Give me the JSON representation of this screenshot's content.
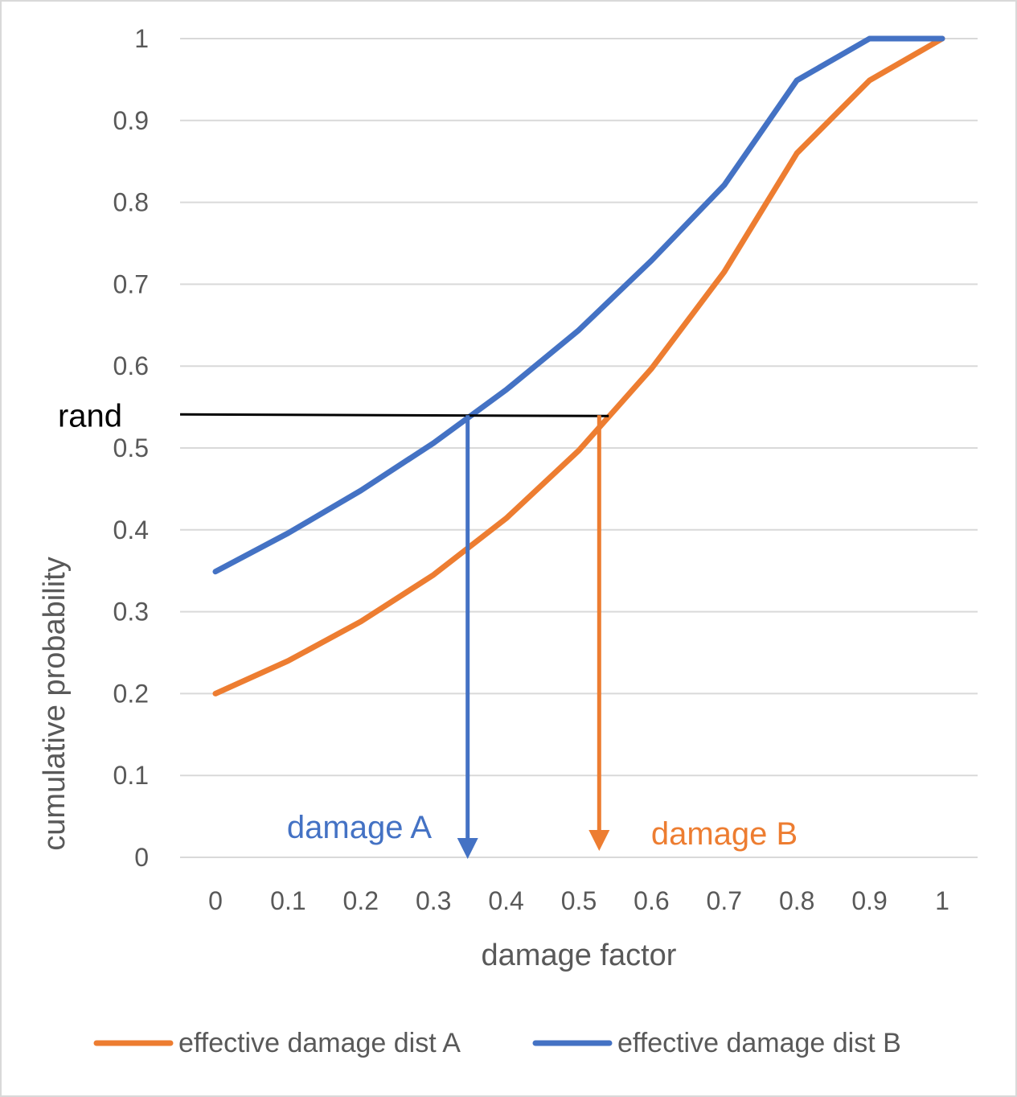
{
  "chart_data": {
    "type": "line",
    "title": "",
    "xlabel": "damage factor",
    "ylabel": "cumulative probability",
    "xlim": [
      0,
      1
    ],
    "ylim": [
      0,
      1
    ],
    "grid": "horizontal",
    "legend_position": "bottom",
    "x": [
      0,
      0.1,
      0.2,
      0.3,
      0.4,
      0.5,
      0.6,
      0.7,
      0.8,
      0.9,
      1
    ],
    "x_tick_labels": [
      "0",
      "0.1",
      "0.2",
      "0.3",
      "0.4",
      "0.5",
      "0.6",
      "0.7",
      "0.8",
      "0.9",
      "1"
    ],
    "y_tick_labels": [
      "0",
      "0.1",
      "0.2",
      "0.3",
      "0.4",
      "0.5",
      "0.6",
      "0.7",
      "0.8",
      "0.9",
      "1"
    ],
    "series": [
      {
        "name": "effective damage dist A",
        "color": "#ED7D31",
        "values": [
          0.2,
          0.24,
          0.288,
          0.345,
          0.414,
          0.497,
          0.597,
          0.715,
          0.86,
          0.949,
          1.0
        ]
      },
      {
        "name": "effective damage dist B",
        "color": "#4472C4",
        "values": [
          0.349,
          0.396,
          0.448,
          0.506,
          0.571,
          0.644,
          0.729,
          0.821,
          0.949,
          1.0,
          1.0
        ]
      }
    ],
    "annotations": {
      "rand": {
        "label": "rand",
        "y": 0.54,
        "x_end": 0.54,
        "color": "#000000"
      },
      "damage_a": {
        "label": "damage A",
        "x": 0.347,
        "color": "#4472C4"
      },
      "damage_b": {
        "label": "damage B",
        "x": 0.528,
        "color": "#ED7D31"
      }
    }
  }
}
